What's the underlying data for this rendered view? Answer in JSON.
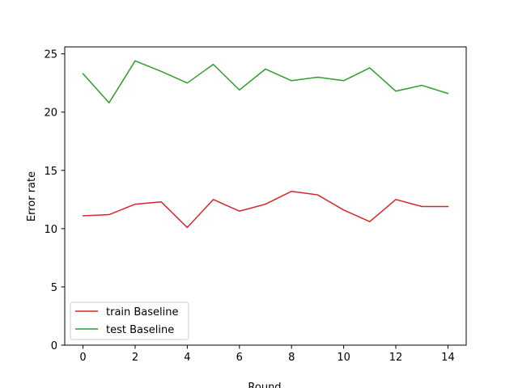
{
  "chart_data": {
    "type": "line",
    "title": "",
    "xlabel": "Round",
    "ylabel": "Error rate",
    "xlim": [
      -0.7,
      14.7
    ],
    "ylim": [
      0,
      25.6
    ],
    "xticks": [
      0,
      2,
      4,
      6,
      8,
      10,
      12,
      14
    ],
    "yticks": [
      0,
      5,
      10,
      15,
      20,
      25
    ],
    "grid": false,
    "legend_position": "lower-left",
    "x": [
      0,
      1,
      2,
      3,
      4,
      5,
      6,
      7,
      8,
      9,
      10,
      11,
      12,
      13,
      14
    ],
    "series": [
      {
        "name": "train Baseline",
        "color": "#d62728",
        "values": [
          11.1,
          11.2,
          12.1,
          12.3,
          10.1,
          12.5,
          11.5,
          12.1,
          13.2,
          12.9,
          11.6,
          10.6,
          12.5,
          11.9,
          11.9
        ]
      },
      {
        "name": "test Baseline",
        "color": "#2ca02c",
        "values": [
          23.3,
          20.8,
          24.4,
          23.5,
          22.5,
          24.1,
          21.9,
          23.7,
          22.7,
          23.0,
          22.7,
          23.8,
          21.8,
          22.3,
          21.6
        ]
      }
    ]
  }
}
